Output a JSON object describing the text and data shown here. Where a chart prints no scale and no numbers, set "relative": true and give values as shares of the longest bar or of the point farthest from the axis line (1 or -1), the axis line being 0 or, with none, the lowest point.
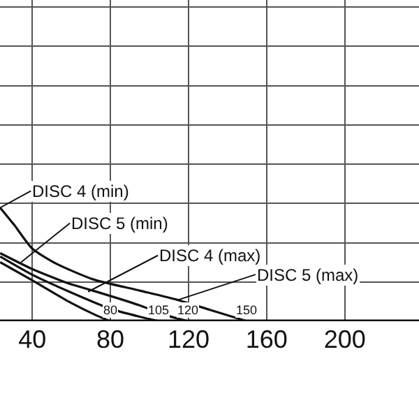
{
  "chart_data": {
    "type": "line",
    "relative": true,
    "grid": true,
    "xlim": [
      23.5,
      238
    ],
    "xticks": [
      40,
      80,
      120,
      160,
      200
    ],
    "series": [
      {
        "color": "#111111",
        "x": [
          23.6,
          30.7,
          40,
          52,
          71,
          95,
          114,
          131,
          150
        ],
        "values": [
          1.0,
          0.85,
          0.64,
          0.51,
          0.37,
          0.27,
          0.19,
          0.1,
          0
        ]
      },
      {
        "color": "#111111",
        "x": [
          23.6,
          40,
          59,
          71,
          95,
          109,
          120
        ],
        "values": [
          0.6,
          0.46,
          0.33,
          0.27,
          0.14,
          0.05,
          0
        ]
      },
      {
        "color": "#111111",
        "x": [
          23.6,
          40,
          59,
          80,
          95,
          105
        ],
        "values": [
          0.57,
          0.41,
          0.26,
          0.11,
          0.04,
          0
        ]
      },
      {
        "color": "#111111",
        "x": [
          23.6,
          40,
          59,
          73,
          80
        ],
        "values": [
          0.52,
          0.36,
          0.17,
          0.05,
          0
        ]
      }
    ],
    "annotations": [
      {
        "text": "DISC 4 (min)",
        "x": 23.6,
        "y": 1.0
      },
      {
        "text": "DISC 5 (min)",
        "x": 34.3,
        "y": 0.52
      },
      {
        "text": "DISC 4 (max)",
        "x": 68.6,
        "y": 0.26
      },
      {
        "text": "DISC 5 (max)",
        "x": 115,
        "y": 0.19
      },
      {
        "text": "80",
        "x": 80,
        "y": 0
      },
      {
        "text": "105",
        "x": 105,
        "y": 0
      },
      {
        "text": "120",
        "x": 120,
        "y": 0
      },
      {
        "text": "150",
        "x": 150,
        "y": 0
      }
    ]
  }
}
